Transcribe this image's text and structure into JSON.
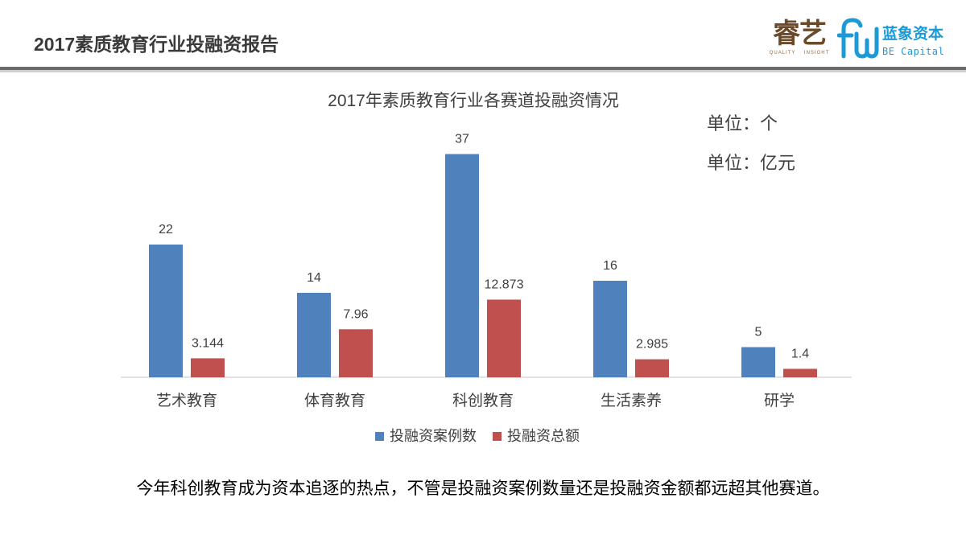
{
  "header": {
    "title": "2017素质教育行业投融资报告"
  },
  "logos": {
    "ruiyi": {
      "text": "睿艺",
      "subtitle": "QUALITY INSIGHT",
      "color": "#6b4a2b"
    },
    "be_capital": {
      "name_cn": "蓝象资本",
      "name_en": "BE Capital",
      "color": "#1c9ad6"
    }
  },
  "chart_data": {
    "type": "bar",
    "title": "2017年素质教育行业各赛道投融资情况",
    "units": [
      "单位：个",
      "单位：亿元"
    ],
    "categories": [
      "艺术教育",
      "体育教育",
      "科创教育",
      "生活素养",
      "研学"
    ],
    "series": [
      {
        "name": "投融资案例数",
        "values": [
          22,
          14,
          37,
          16,
          5
        ],
        "color": "#4f81bd"
      },
      {
        "name": "投融资总额",
        "values": [
          3.144,
          7.96,
          12.873,
          2.985,
          1.4
        ],
        "color": "#c0504d"
      }
    ],
    "ylim": [
      0,
      40
    ],
    "grid": false,
    "legend": "bottom",
    "data_labels": true
  },
  "footer": {
    "note": "今年科创教育成为资本追逐的热点，不管是投融资案例数量还是投融资金额都远超其他赛道。"
  }
}
